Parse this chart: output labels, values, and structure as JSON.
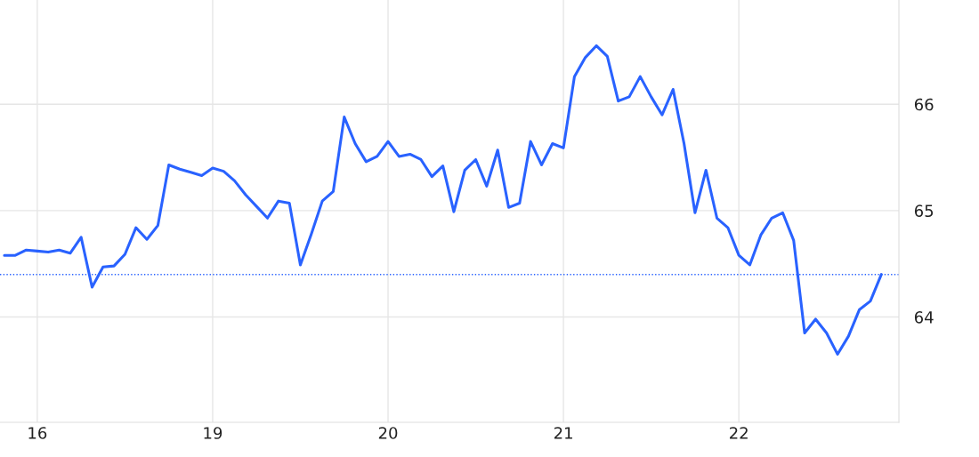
{
  "chart_data": {
    "type": "line",
    "categories": [
      null,
      null,
      null,
      "16",
      null,
      null,
      null,
      null,
      null,
      null,
      null,
      null,
      null,
      null,
      null,
      null,
      null,
      null,
      null,
      "19",
      null,
      null,
      null,
      null,
      null,
      null,
      null,
      null,
      null,
      null,
      null,
      null,
      null,
      null,
      null,
      "20",
      null,
      null,
      null,
      null,
      null,
      null,
      null,
      null,
      null,
      null,
      null,
      null,
      null,
      null,
      null,
      "21",
      null,
      null,
      null,
      null,
      null,
      null,
      null,
      null,
      null,
      null,
      null,
      null,
      null,
      null,
      null,
      "22",
      null,
      null,
      null,
      null,
      null,
      null,
      null,
      null,
      null,
      null,
      null,
      null,
      null
    ],
    "series": [
      {
        "color": "#2962ff",
        "values": [
          64.58,
          64.58,
          64.63,
          64.62,
          64.61,
          64.63,
          64.6,
          64.75,
          64.28,
          64.47,
          64.48,
          64.59,
          64.84,
          64.73,
          64.86,
          65.43,
          65.39,
          65.36,
          65.33,
          65.4,
          65.37,
          65.28,
          65.15,
          65.04,
          64.93,
          65.09,
          65.07,
          64.49,
          64.78,
          65.09,
          65.18,
          65.88,
          65.63,
          65.46,
          65.51,
          65.65,
          65.51,
          65.53,
          65.48,
          65.32,
          65.42,
          64.99,
          65.38,
          65.48,
          65.23,
          65.57,
          65.03,
          65.07,
          65.65,
          65.43,
          65.63,
          65.59,
          66.26,
          66.44,
          66.55,
          66.45,
          66.03,
          66.07,
          66.26,
          66.07,
          65.9,
          66.14,
          65.63,
          64.98,
          65.38,
          64.93,
          64.84,
          64.58,
          64.49,
          64.77,
          64.93,
          64.98,
          64.72,
          63.85,
          63.98,
          63.85,
          63.65,
          63.82,
          64.07,
          64.15,
          64.4
        ]
      }
    ],
    "ylim": [
      63.01,
      66.98
    ],
    "yticks": [
      64,
      65,
      66
    ],
    "ref_lines": [
      {
        "axis": "y",
        "value": 64.4,
        "color": "#2962ff",
        "line_style": "dotted"
      }
    ],
    "grid": true,
    "marker": "none",
    "line_style": "solid"
  }
}
